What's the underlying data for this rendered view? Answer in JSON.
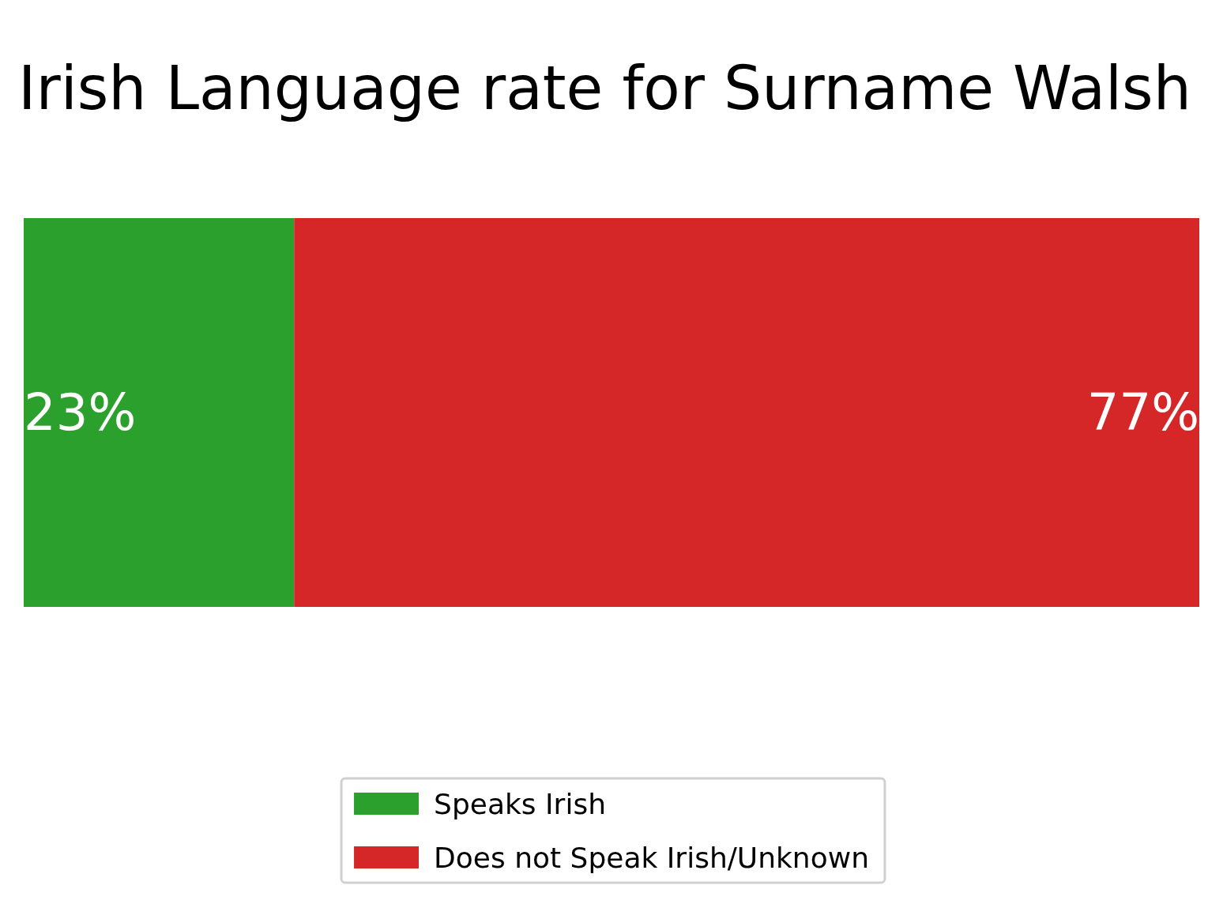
{
  "chart_data": {
    "type": "bar",
    "orientation": "horizontal",
    "stacked": true,
    "title": "Irish Language rate for Surname Walsh",
    "categories": [
      null
    ],
    "series": [
      {
        "name": "Speaks Irish",
        "color": "#2ca02c",
        "values": [
          23
        ],
        "value_labels": [
          "23%"
        ]
      },
      {
        "name": "Does not Speak Irish/Unknown",
        "color": "#d62728",
        "values": [
          77
        ],
        "value_labels": [
          "77%"
        ]
      }
    ],
    "legend": "bottom"
  }
}
